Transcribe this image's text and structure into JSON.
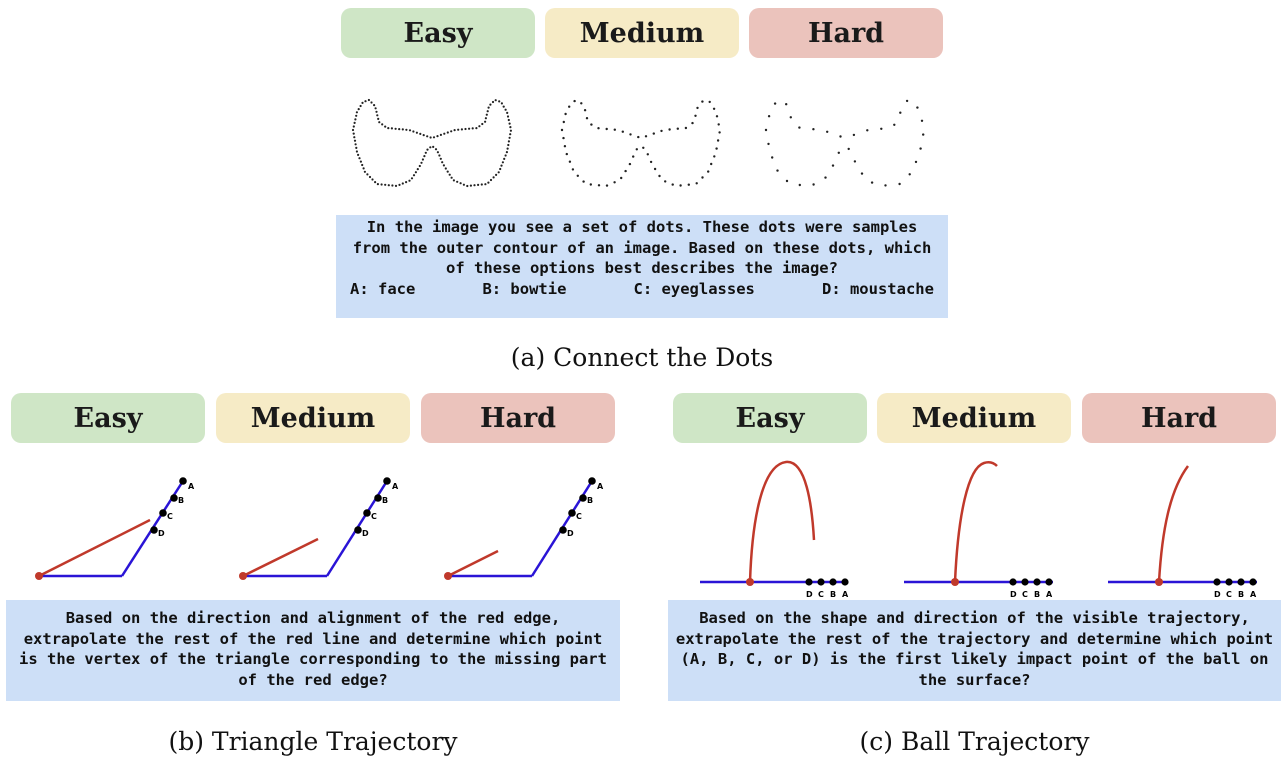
{
  "panel_a": {
    "difficulty": [
      "Easy",
      "Medium",
      "Hard"
    ],
    "prompt": "In the image you see a set of dots. These dots were samples from the outer contour of an image. Based on these dots, which of these options best describes the image?",
    "options": [
      "A: face",
      "B: bowtie",
      "C: eyeglasses",
      "D: moustache"
    ],
    "caption": "(a) Connect the Dots"
  },
  "panel_b": {
    "difficulty": [
      "Easy",
      "Medium",
      "Hard"
    ],
    "point_labels": [
      "A",
      "B",
      "C",
      "D"
    ],
    "prompt": "Based on the direction and alignment of the red edge, extrapolate the rest of the red line and determine which point is the vertex of the triangle corresponding to the missing part of the red edge?",
    "caption": "(b) Triangle Trajectory"
  },
  "panel_c": {
    "difficulty": [
      "Easy",
      "Medium",
      "Hard"
    ],
    "point_labels": [
      "D",
      "C",
      "B",
      "A"
    ],
    "prompt": "Based on the shape and direction of the visible trajectory, extrapolate the rest of the trajectory and determine which point (A, B, C, or D) is the first likely impact point of the ball on the surface?",
    "caption": "(c) Ball Trajectory"
  },
  "colors": {
    "easy": "#cfe6c6",
    "medium": "#f6ebc6",
    "hard": "#ebc3bc",
    "prompt_bg": "#cddff7",
    "red_edge": "#c0392b",
    "blue_edge": "#2a14d6"
  }
}
